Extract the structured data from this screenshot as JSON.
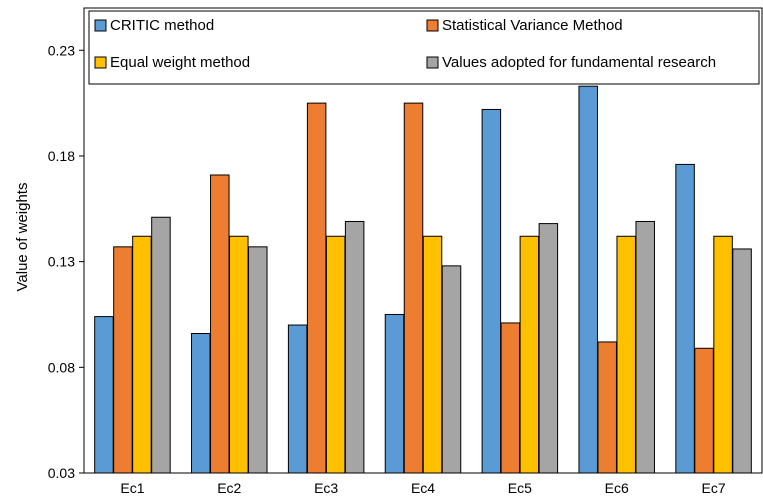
{
  "chart_data": {
    "type": "bar",
    "title": "",
    "xlabel": "",
    "ylabel": "Value of weights",
    "ylim": [
      0.03,
      0.25
    ],
    "yticks": [
      "0.03",
      "0.08",
      "0.13",
      "0.18",
      "0.23"
    ],
    "grid": false,
    "legend_position": "top",
    "categories": [
      "Ec1",
      "Ec2",
      "Ec3",
      "Ec4",
      "Ec5",
      "Ec6",
      "Ec7"
    ],
    "series": [
      {
        "name": "CRITIC method",
        "color": "#5B9BD5",
        "values": [
          0.104,
          0.096,
          0.1,
          0.105,
          0.202,
          0.213,
          0.176
        ]
      },
      {
        "name": "Statistical Variance Method",
        "color": "#ED7D31",
        "values": [
          0.137,
          0.171,
          0.205,
          0.205,
          0.101,
          0.092,
          0.089
        ]
      },
      {
        "name": "Equal weight method",
        "color": "#FFC000",
        "values": [
          0.142,
          0.142,
          0.142,
          0.142,
          0.142,
          0.142,
          0.142
        ]
      },
      {
        "name": "Values adopted for fundamental research",
        "color": "#A5A5A5",
        "values": [
          0.151,
          0.137,
          0.149,
          0.128,
          0.148,
          0.149,
          0.136
        ]
      }
    ]
  }
}
